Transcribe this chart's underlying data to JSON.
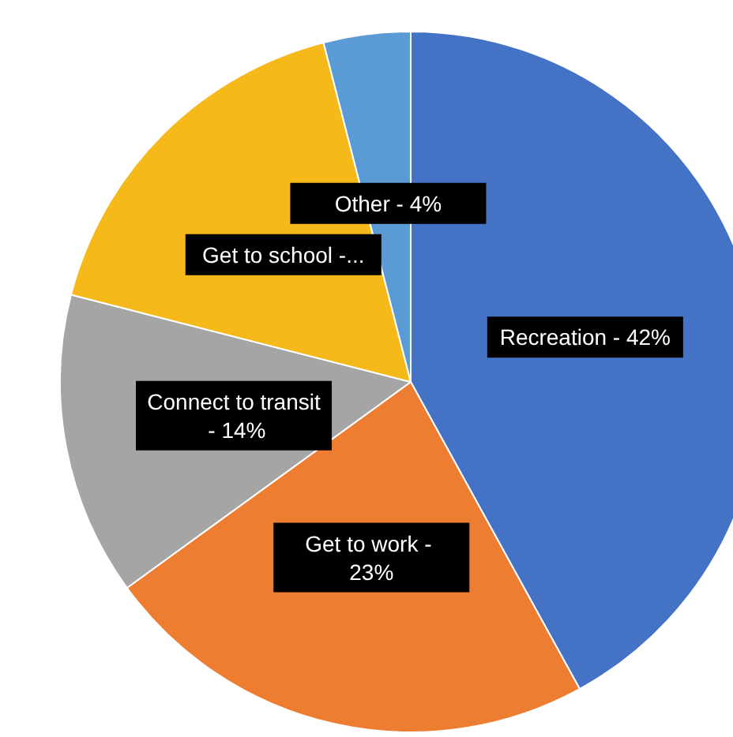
{
  "chart_data": {
    "type": "pie",
    "categories": [
      "Recreation - 42%",
      "Get to work - 23%",
      "Connect to transit - 14%",
      "Get to school -...",
      "Other - 4%"
    ],
    "values": [
      42,
      23,
      14,
      17,
      4
    ],
    "colors": [
      "#4472c4",
      "#ed7d31",
      "#a5a5a5",
      "#f6b91a",
      "#5b9bd5"
    ]
  }
}
